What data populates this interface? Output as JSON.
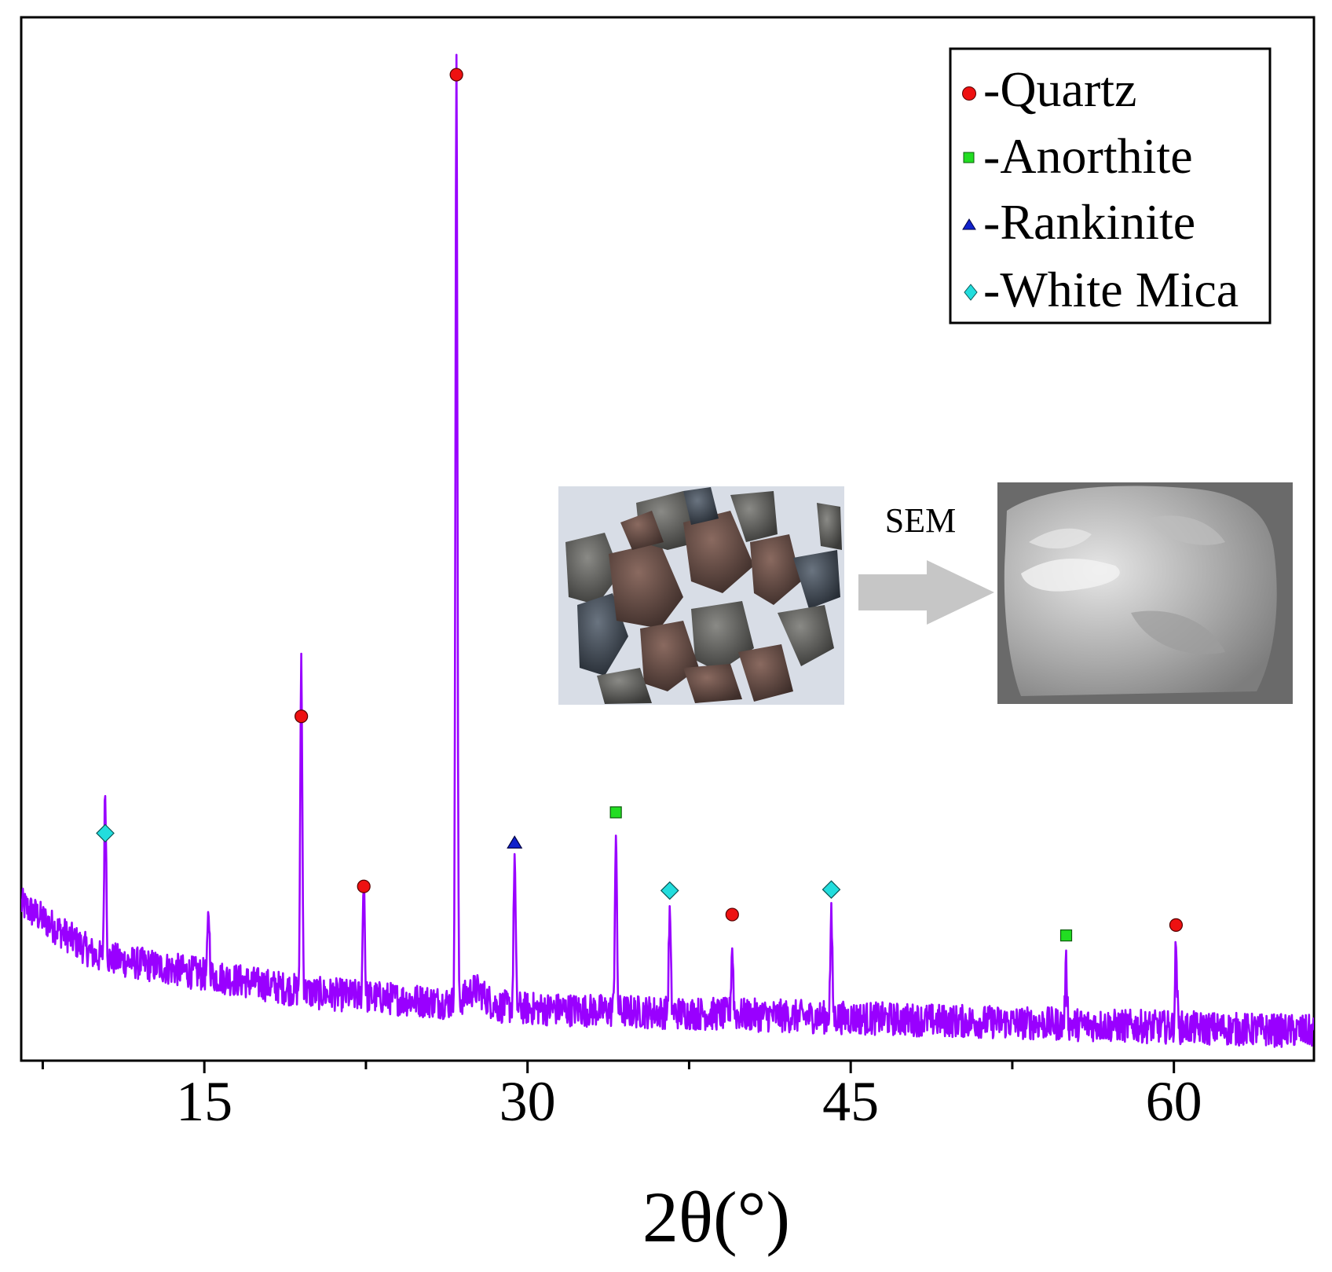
{
  "chart_data": {
    "type": "line",
    "title": "",
    "xlabel": "2θ(°)",
    "ylabel": "",
    "xlim": [
      6.5,
      66.5
    ],
    "ylim": [
      0,
      100
    ],
    "x_ticks_major": [
      15,
      30,
      45,
      60
    ],
    "x_ticks_minor": [
      7.5,
      22.5,
      37.5,
      52.5
    ],
    "line_color": "#9900ff",
    "baseline": {
      "start": 15,
      "at_10": 10,
      "at_20": 6.5,
      "at_30": 5.0,
      "end": 2.8,
      "noise": 1.6
    },
    "peaks": [
      {
        "x": 10.4,
        "height": 16,
        "phase": "White Mica"
      },
      {
        "x": 15.2,
        "height": 6,
        "phase": ""
      },
      {
        "x": 19.5,
        "height": 32,
        "phase": "Quartz"
      },
      {
        "x": 22.4,
        "height": 11.5,
        "phase": "Quartz"
      },
      {
        "x": 26.7,
        "height": 91,
        "phase": "Quartz"
      },
      {
        "x": 29.4,
        "height": 14.5,
        "phase": "Rankinite"
      },
      {
        "x": 34.1,
        "height": 17,
        "phase": "Anorthite"
      },
      {
        "x": 36.6,
        "height": 9.5,
        "phase": "White Mica"
      },
      {
        "x": 39.5,
        "height": 6.5,
        "phase": "Quartz"
      },
      {
        "x": 44.1,
        "height": 9.5,
        "phase": "White Mica"
      },
      {
        "x": 55.0,
        "height": 5.5,
        "phase": "Anorthite"
      },
      {
        "x": 60.1,
        "height": 7.8,
        "phase": "Quartz"
      }
    ],
    "markers": [
      {
        "x": 26.7,
        "y": 94.5,
        "phase": "Quartz"
      },
      {
        "x": 19.5,
        "y": 33,
        "phase": "Quartz"
      },
      {
        "x": 22.4,
        "y": 16.7,
        "phase": "Quartz"
      },
      {
        "x": 39.5,
        "y": 14,
        "phase": "Quartz"
      },
      {
        "x": 60.1,
        "y": 13,
        "phase": "Quartz"
      },
      {
        "x": 10.4,
        "y": 21.8,
        "phase": "White Mica"
      },
      {
        "x": 36.6,
        "y": 16.3,
        "phase": "White Mica"
      },
      {
        "x": 44.1,
        "y": 16.4,
        "phase": "White Mica"
      },
      {
        "x": 34.1,
        "y": 23.8,
        "phase": "Anorthite"
      },
      {
        "x": 55.0,
        "y": 12,
        "phase": "Anorthite"
      },
      {
        "x": 29.4,
        "y": 20.9,
        "phase": "Rankinite"
      }
    ],
    "legend": {
      "position": "top-right",
      "entries": [
        {
          "label": "-Quartz",
          "phase": "Quartz",
          "marker": "circle",
          "color": "#ee1111"
        },
        {
          "label": "-Anorthite",
          "phase": "Anorthite",
          "marker": "square",
          "color": "#22dd22"
        },
        {
          "label": "-Rankinite",
          "phase": "Rankinite",
          "marker": "triangle",
          "color": "#1122cc"
        },
        {
          "label": "-White Mica",
          "phase": "White Mica",
          "marker": "diamond",
          "color": "#22dddd"
        }
      ]
    }
  },
  "inset": {
    "caption": "SEM",
    "photo_subject": "granite aggregate pieces",
    "sem_subject": "SEM micrograph of aggregate particle"
  }
}
